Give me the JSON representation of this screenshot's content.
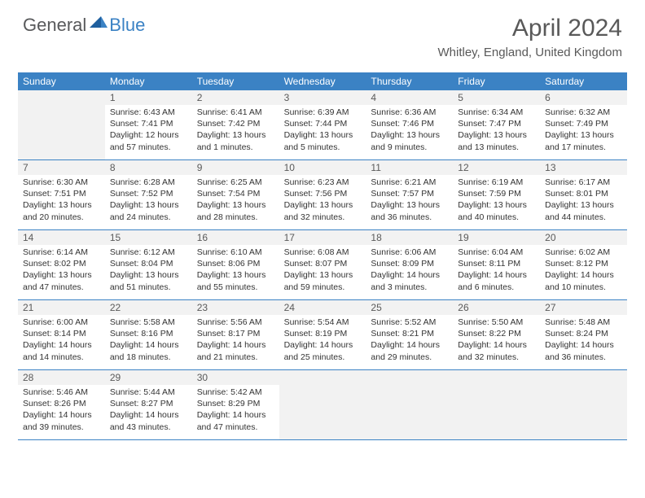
{
  "logo": {
    "general": "General",
    "blue": "Blue"
  },
  "title": "April 2024",
  "location": "Whitley, England, United Kingdom",
  "colors": {
    "header_bg": "#3b82c4",
    "header_text": "#ffffff",
    "daynum_bg": "#f2f2f2",
    "text": "#595959",
    "border": "#3b82c4"
  },
  "day_names": [
    "Sunday",
    "Monday",
    "Tuesday",
    "Wednesday",
    "Thursday",
    "Friday",
    "Saturday"
  ],
  "weeks": [
    [
      {
        "empty": true
      },
      {
        "n": "1",
        "sr": "Sunrise: 6:43 AM",
        "ss": "Sunset: 7:41 PM",
        "dl": "Daylight: 12 hours and 57 minutes."
      },
      {
        "n": "2",
        "sr": "Sunrise: 6:41 AM",
        "ss": "Sunset: 7:42 PM",
        "dl": "Daylight: 13 hours and 1 minutes."
      },
      {
        "n": "3",
        "sr": "Sunrise: 6:39 AM",
        "ss": "Sunset: 7:44 PM",
        "dl": "Daylight: 13 hours and 5 minutes."
      },
      {
        "n": "4",
        "sr": "Sunrise: 6:36 AM",
        "ss": "Sunset: 7:46 PM",
        "dl": "Daylight: 13 hours and 9 minutes."
      },
      {
        "n": "5",
        "sr": "Sunrise: 6:34 AM",
        "ss": "Sunset: 7:47 PM",
        "dl": "Daylight: 13 hours and 13 minutes."
      },
      {
        "n": "6",
        "sr": "Sunrise: 6:32 AM",
        "ss": "Sunset: 7:49 PM",
        "dl": "Daylight: 13 hours and 17 minutes."
      }
    ],
    [
      {
        "n": "7",
        "sr": "Sunrise: 6:30 AM",
        "ss": "Sunset: 7:51 PM",
        "dl": "Daylight: 13 hours and 20 minutes."
      },
      {
        "n": "8",
        "sr": "Sunrise: 6:28 AM",
        "ss": "Sunset: 7:52 PM",
        "dl": "Daylight: 13 hours and 24 minutes."
      },
      {
        "n": "9",
        "sr": "Sunrise: 6:25 AM",
        "ss": "Sunset: 7:54 PM",
        "dl": "Daylight: 13 hours and 28 minutes."
      },
      {
        "n": "10",
        "sr": "Sunrise: 6:23 AM",
        "ss": "Sunset: 7:56 PM",
        "dl": "Daylight: 13 hours and 32 minutes."
      },
      {
        "n": "11",
        "sr": "Sunrise: 6:21 AM",
        "ss": "Sunset: 7:57 PM",
        "dl": "Daylight: 13 hours and 36 minutes."
      },
      {
        "n": "12",
        "sr": "Sunrise: 6:19 AM",
        "ss": "Sunset: 7:59 PM",
        "dl": "Daylight: 13 hours and 40 minutes."
      },
      {
        "n": "13",
        "sr": "Sunrise: 6:17 AM",
        "ss": "Sunset: 8:01 PM",
        "dl": "Daylight: 13 hours and 44 minutes."
      }
    ],
    [
      {
        "n": "14",
        "sr": "Sunrise: 6:14 AM",
        "ss": "Sunset: 8:02 PM",
        "dl": "Daylight: 13 hours and 47 minutes."
      },
      {
        "n": "15",
        "sr": "Sunrise: 6:12 AM",
        "ss": "Sunset: 8:04 PM",
        "dl": "Daylight: 13 hours and 51 minutes."
      },
      {
        "n": "16",
        "sr": "Sunrise: 6:10 AM",
        "ss": "Sunset: 8:06 PM",
        "dl": "Daylight: 13 hours and 55 minutes."
      },
      {
        "n": "17",
        "sr": "Sunrise: 6:08 AM",
        "ss": "Sunset: 8:07 PM",
        "dl": "Daylight: 13 hours and 59 minutes."
      },
      {
        "n": "18",
        "sr": "Sunrise: 6:06 AM",
        "ss": "Sunset: 8:09 PM",
        "dl": "Daylight: 14 hours and 3 minutes."
      },
      {
        "n": "19",
        "sr": "Sunrise: 6:04 AM",
        "ss": "Sunset: 8:11 PM",
        "dl": "Daylight: 14 hours and 6 minutes."
      },
      {
        "n": "20",
        "sr": "Sunrise: 6:02 AM",
        "ss": "Sunset: 8:12 PM",
        "dl": "Daylight: 14 hours and 10 minutes."
      }
    ],
    [
      {
        "n": "21",
        "sr": "Sunrise: 6:00 AM",
        "ss": "Sunset: 8:14 PM",
        "dl": "Daylight: 14 hours and 14 minutes."
      },
      {
        "n": "22",
        "sr": "Sunrise: 5:58 AM",
        "ss": "Sunset: 8:16 PM",
        "dl": "Daylight: 14 hours and 18 minutes."
      },
      {
        "n": "23",
        "sr": "Sunrise: 5:56 AM",
        "ss": "Sunset: 8:17 PM",
        "dl": "Daylight: 14 hours and 21 minutes."
      },
      {
        "n": "24",
        "sr": "Sunrise: 5:54 AM",
        "ss": "Sunset: 8:19 PM",
        "dl": "Daylight: 14 hours and 25 minutes."
      },
      {
        "n": "25",
        "sr": "Sunrise: 5:52 AM",
        "ss": "Sunset: 8:21 PM",
        "dl": "Daylight: 14 hours and 29 minutes."
      },
      {
        "n": "26",
        "sr": "Sunrise: 5:50 AM",
        "ss": "Sunset: 8:22 PM",
        "dl": "Daylight: 14 hours and 32 minutes."
      },
      {
        "n": "27",
        "sr": "Sunrise: 5:48 AM",
        "ss": "Sunset: 8:24 PM",
        "dl": "Daylight: 14 hours and 36 minutes."
      }
    ],
    [
      {
        "n": "28",
        "sr": "Sunrise: 5:46 AM",
        "ss": "Sunset: 8:26 PM",
        "dl": "Daylight: 14 hours and 39 minutes."
      },
      {
        "n": "29",
        "sr": "Sunrise: 5:44 AM",
        "ss": "Sunset: 8:27 PM",
        "dl": "Daylight: 14 hours and 43 minutes."
      },
      {
        "n": "30",
        "sr": "Sunrise: 5:42 AM",
        "ss": "Sunset: 8:29 PM",
        "dl": "Daylight: 14 hours and 47 minutes."
      },
      {
        "empty": true
      },
      {
        "empty": true
      },
      {
        "empty": true
      },
      {
        "empty": true
      }
    ]
  ]
}
